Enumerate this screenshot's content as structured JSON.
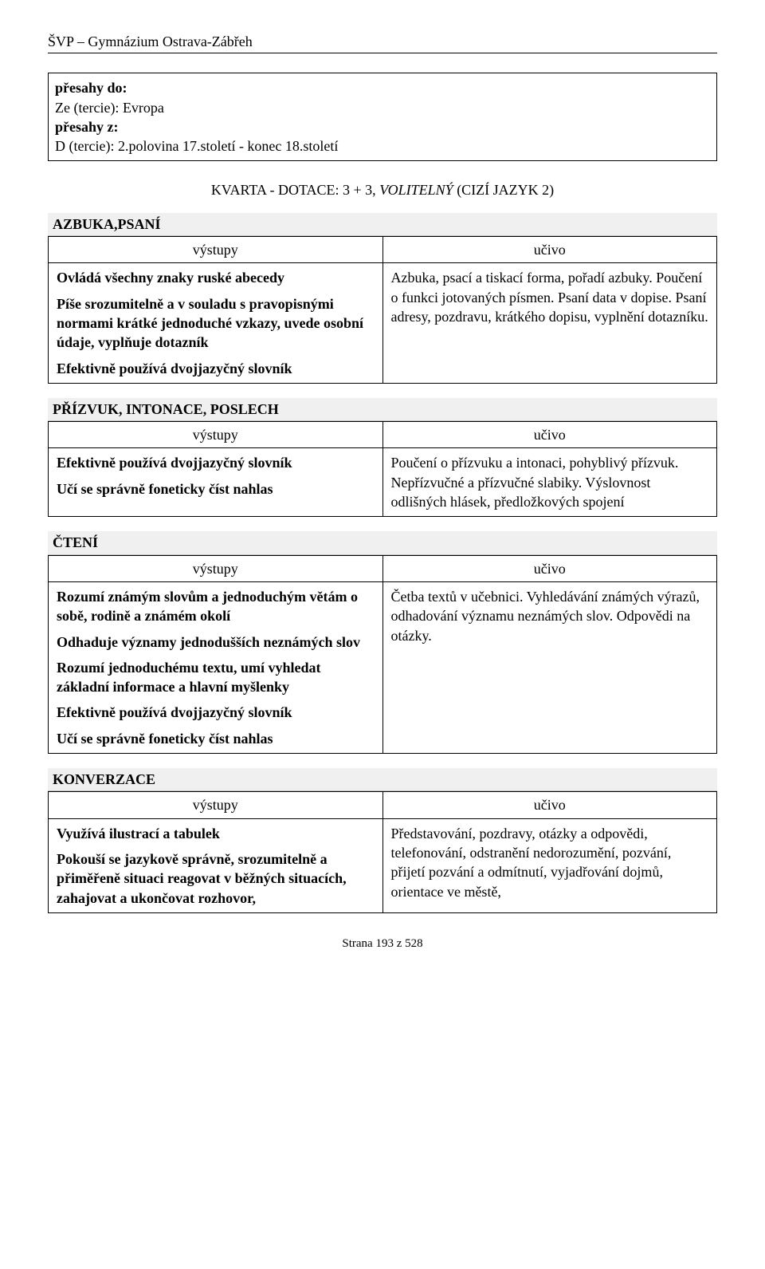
{
  "header": "ŠVP – Gymnázium Ostrava-Zábřeh",
  "box": {
    "l1_bold": "přesahy do:",
    "l2": "Ze (tercie): Evropa",
    "l3_bold": "přesahy z:",
    "l4": "D (tercie): 2.polovina 17.století - konec 18.století"
  },
  "dotace": {
    "pre": "KVARTA - DOTACE:",
    "mid": " 3 + 3, ",
    "italic": "VOLITELNÝ",
    "post": " (CIZÍ JAZYK 2)"
  },
  "sections": [
    {
      "title": "AZBUKA,PSANÍ",
      "th1": "výstupy",
      "th2": "učivo",
      "left": [
        {
          "bold": true,
          "text": "Ovládá všechny znaky ruské abecedy"
        },
        {
          "bold": true,
          "text": "Píše srozumitelně a v souladu s pravopisnými normami krátké jednoduché vzkazy, uvede osobní údaje, vyplňuje dotazník"
        },
        {
          "bold": true,
          "text": "Efektivně používá dvojjazyčný slovník"
        }
      ],
      "right": [
        {
          "bold": false,
          "text": "Azbuka, psací a tiskací forma, pořadí azbuky. Poučení o funkci jotovaných písmen. Psaní data v dopise. Psaní adresy, pozdravu, krátkého dopisu, vyplnění dotazníku."
        }
      ]
    },
    {
      "title": "PŘÍZVUK, INTONACE, POSLECH",
      "th1": "výstupy",
      "th2": "učivo",
      "left": [
        {
          "bold": true,
          "text": "Efektivně používá dvojjazyčný slovník"
        },
        {
          "bold": true,
          "text": "Učí se správně foneticky číst nahlas"
        }
      ],
      "right": [
        {
          "bold": false,
          "text": "Poučení o přízvuku a intonaci, pohyblivý přízvuk. Nepřízvučné a přízvučné slabiky. Výslovnost odlišných hlásek, předložkových spojení"
        }
      ]
    },
    {
      "title": "ČTENÍ",
      "th1": "výstupy",
      "th2": "učivo",
      "left": [
        {
          "bold": true,
          "text": "Rozumí známým slovům a jednoduchým větám o sobě, rodině a známém okolí"
        },
        {
          "bold": true,
          "text": "Odhaduje významy jednodušších neznámých slov"
        },
        {
          "bold": true,
          "text": "Rozumí jednoduchému textu, umí vyhledat základní informace a hlavní myšlenky"
        },
        {
          "bold": true,
          "text": "Efektivně používá dvojjazyčný slovník"
        },
        {
          "bold": true,
          "text": "Učí se správně foneticky číst nahlas"
        }
      ],
      "right": [
        {
          "bold": false,
          "text": "Četba textů v učebnici. Vyhledávání známých výrazů, odhadování významu neznámých slov. Odpovědi na otázky."
        }
      ]
    },
    {
      "title": "KONVERZACE",
      "th1": "výstupy",
      "th2": "učivo",
      "left": [
        {
          "bold": true,
          "text": "Využívá ilustrací a tabulek"
        },
        {
          "bold": true,
          "text": "Pokouší se jazykově správně, srozumitelně a přiměřeně situaci reagovat v běžných situacích, zahajovat a ukončovat rozhovor,"
        }
      ],
      "right": [
        {
          "bold": false,
          "text": "Představování, pozdravy, otázky a odpovědi, telefonování, odstranění nedorozumění, pozvání, přijetí pozvání a odmítnutí, vyjadřování dojmů, orientace ve městě,"
        }
      ]
    }
  ],
  "footer": "Strana 193 z 528"
}
